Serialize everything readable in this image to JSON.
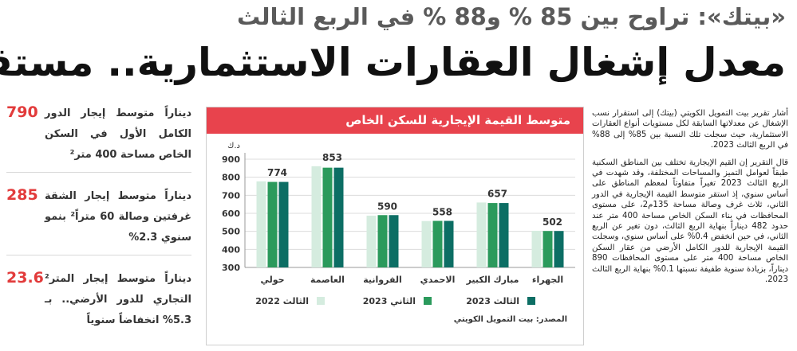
{
  "kicker": "«بيتك»: تراوح بين 85 % و88 % في الربع الثالث",
  "headline": "معدل إشغال العقارات الاستثمارية.. مستقر",
  "body": {
    "p1": "أشار تقرير بيت التمويل الكويتي (بيتك) إلى استقرار نسب الإشغال عن معدلاتها السابقة لكل مستويات أنواع العقارات الاستثمارية، حيث سجلت تلك النسبة بين 85% إلى 88% في الربع الثالث 2023.",
    "p2": "قال التقرير إن القيم الإيجارية تختلف بين المناطق السكنية طبقاً لعوامل التميز والمساحات المختلفة، وقد شهدت في الربع الثالث 2023 تغيراً متفاوتاً لمعظم المناطق على أساس سنوي، إذ استقر متوسط القيمة الإيجارية في الدور الثاني، ثلاث غرف وصالة مساحة 135م2، على مستوى المحافظات في بناء السكن الخاص مساحة 400 متر عند حدود 482 ديناراً بنهاية الربع الثالث، دون تغير عن الربع الثاني، في حين انخفض 0.4% على أساس سنوي، وسجلت القيمة الإيجارية للدور الكامل الأرضي من عقار السكن الخاص مساحة 400 متر على مستوى المحافظات 890 ديناراً، بزيادة سنوية طفيفة نسبتها 0.1% بنهاية الربع الثالث 2023."
  },
  "stats": [
    {
      "value": "790",
      "text": "ديناراً متوسط إيجار الدور الكامل الأول في السكن الخاص مساحة 400 متر²"
    },
    {
      "value": "285",
      "text": "ديناراً متوسط إيجار الشقة غرفتين وصالة 60 متراً² بنمو سنوي 2.3%"
    },
    {
      "value": "23.6",
      "text": "ديناراً متوسط إيجار المتر² التجاري للدور الأرضي.. بـ 5.3% انخفاضاً سنوياً"
    }
  ],
  "chart": {
    "header": "متوسط القيمة الإيجارية للسكن الخاص",
    "source": "المصدر: بيت التمويل الكويتي",
    "colors": {
      "q3_2022": "#d5ecdf",
      "q2_2023": "#2b9a5c",
      "q3_2023": "#0c6e64",
      "header_bg": "#e8434d"
    }
  },
  "chart_data": {
    "type": "bar",
    "title": "متوسط القيمة الإيجارية للسكن الخاص",
    "ylabel": "د.ك",
    "xlabel": "",
    "ylim": [
      300,
      900
    ],
    "yticks": [
      300,
      400,
      500,
      600,
      700,
      800,
      900
    ],
    "categories": [
      "حولي",
      "العاصمة",
      "الفروانية",
      "الاحمدي",
      "مبارك الكبير",
      "الجهراء"
    ],
    "series": [
      {
        "name": "الثالث 2022",
        "values": [
          777,
          861,
          587,
          557,
          660,
          503
        ]
      },
      {
        "name": "الثاني 2023",
        "values": [
          774,
          853,
          590,
          558,
          657,
          502
        ]
      },
      {
        "name": "الثالث 2023",
        "values": [
          774,
          853,
          590,
          558,
          657,
          502
        ]
      }
    ],
    "data_labels": [
      "774",
      "853",
      "590",
      "558",
      "657",
      "502"
    ],
    "legend_position": "bottom",
    "grid": true
  }
}
